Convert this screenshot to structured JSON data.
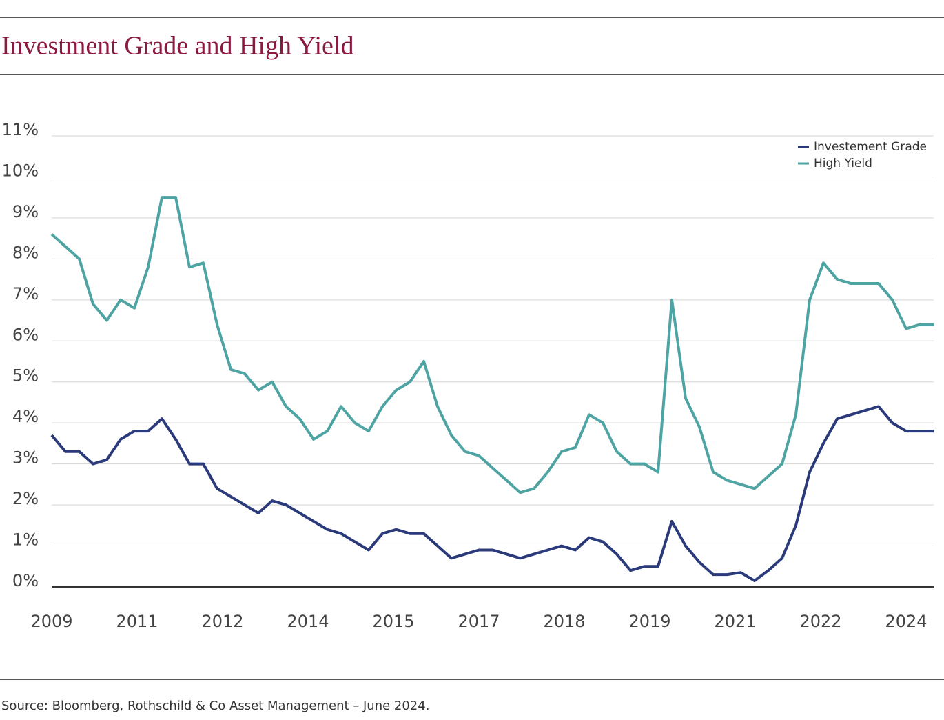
{
  "chart_data": {
    "type": "line",
    "title": "Investment Grade and High Yield",
    "source": "Source: Bloomberg, Rothschild & Co Asset Management – June 2024.",
    "x": [
      2009,
      2009.25,
      2009.5,
      2009.75,
      2010,
      2010.25,
      2010.5,
      2010.75,
      2011,
      2011.25,
      2011.5,
      2011.75,
      2012,
      2012.25,
      2012.5,
      2012.75,
      2013,
      2013.25,
      2013.5,
      2013.75,
      2014,
      2014.25,
      2014.5,
      2014.75,
      2015,
      2015.25,
      2015.5,
      2015.75,
      2016,
      2016.25,
      2016.5,
      2016.75,
      2017,
      2017.25,
      2017.5,
      2017.75,
      2018,
      2018.25,
      2018.5,
      2018.75,
      2019,
      2019.25,
      2019.5,
      2019.75,
      2020,
      2020.25,
      2020.5,
      2020.75,
      2021,
      2021.25,
      2021.5,
      2021.75,
      2022,
      2022.25,
      2022.5,
      2022.75,
      2023,
      2023.25,
      2023.5,
      2023.75,
      2024,
      2024.25,
      2024.5,
      2024.75,
      2025
    ],
    "series": [
      {
        "name": "Investement Grade",
        "color": "#2b3a7a",
        "values": [
          3.7,
          3.3,
          3.3,
          3.0,
          3.1,
          3.6,
          3.8,
          3.8,
          4.1,
          3.6,
          3.0,
          3.0,
          2.4,
          2.2,
          2.0,
          1.8,
          2.1,
          2.0,
          1.8,
          1.6,
          1.4,
          1.3,
          1.1,
          0.9,
          1.3,
          1.4,
          1.3,
          1.3,
          1.0,
          0.7,
          0.8,
          0.9,
          0.9,
          0.8,
          0.7,
          0.8,
          0.9,
          1.0,
          0.9,
          1.2,
          1.1,
          0.8,
          0.4,
          0.5,
          0.5,
          1.6,
          1.0,
          0.6,
          0.3,
          0.3,
          0.35,
          0.15,
          0.4,
          0.7,
          1.5,
          2.8,
          3.5,
          4.1,
          4.2,
          4.3,
          4.4,
          4.0,
          3.8,
          3.8,
          3.8
        ]
      },
      {
        "name": "High Yield",
        "color": "#4ea3a3",
        "values": [
          8.6,
          8.3,
          8.0,
          6.9,
          6.5,
          7.0,
          6.8,
          7.8,
          9.5,
          9.5,
          7.8,
          7.9,
          6.4,
          5.3,
          5.2,
          4.8,
          5.0,
          4.4,
          4.1,
          3.6,
          3.8,
          4.4,
          4.0,
          3.8,
          4.4,
          4.8,
          5.0,
          5.5,
          4.4,
          3.7,
          3.3,
          3.2,
          2.9,
          2.6,
          2.3,
          2.4,
          2.8,
          3.3,
          3.4,
          4.2,
          4.0,
          3.3,
          3.0,
          3.0,
          2.8,
          7.0,
          4.6,
          3.9,
          2.8,
          2.6,
          2.5,
          2.4,
          2.7,
          3.0,
          4.2,
          7.0,
          7.9,
          7.5,
          7.4,
          7.4,
          7.4,
          7.0,
          6.3,
          6.4,
          6.4
        ]
      }
    ],
    "xlim": [
      2009,
      2025
    ],
    "xticks": [
      {
        "value": 2009,
        "label": "2009"
      },
      {
        "value": 2010.55,
        "label": "2011"
      },
      {
        "value": 2012.1,
        "label": "2012"
      },
      {
        "value": 2013.65,
        "label": "2014"
      },
      {
        "value": 2015.2,
        "label": "2015"
      },
      {
        "value": 2016.75,
        "label": "2017"
      },
      {
        "value": 2018.3,
        "label": "2018"
      },
      {
        "value": 2019.85,
        "label": "2019"
      },
      {
        "value": 2021.4,
        "label": "2021"
      },
      {
        "value": 2022.95,
        "label": "2022"
      },
      {
        "value": 2024.5,
        "label": "2024"
      }
    ],
    "ylim": [
      0,
      11
    ],
    "yticks": [
      {
        "value": 0,
        "label": "0%"
      },
      {
        "value": 1,
        "label": "1%"
      },
      {
        "value": 2,
        "label": "2%"
      },
      {
        "value": 3,
        "label": "3%"
      },
      {
        "value": 4,
        "label": "4%"
      },
      {
        "value": 5,
        "label": "5%"
      },
      {
        "value": 6,
        "label": "6%"
      },
      {
        "value": 7,
        "label": "7%"
      },
      {
        "value": 8,
        "label": "8%"
      },
      {
        "value": 9,
        "label": "9%"
      },
      {
        "value": 10,
        "label": "10%"
      },
      {
        "value": 11,
        "label": "11%"
      }
    ],
    "grid": true,
    "legend": "upper right"
  }
}
